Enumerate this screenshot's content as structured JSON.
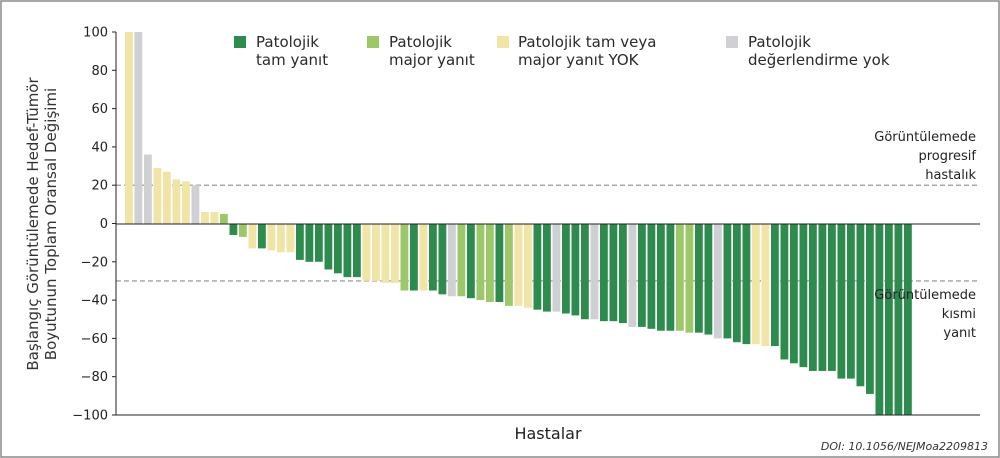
{
  "chart_data": {
    "type": "bar",
    "ylabel_lines": [
      "Başlangıç Görüntülemede Hedef-Tümör",
      "Boyutunun Toplam Oransal Değişimi"
    ],
    "xlabel": "Hastalar",
    "ylim": [
      -100,
      100
    ],
    "yticks": [
      "100",
      "80",
      "60",
      "40",
      "20",
      "0",
      "−20",
      "−40",
      "−60",
      "−80",
      "−100"
    ],
    "ytick_values": [
      100,
      80,
      60,
      40,
      20,
      0,
      -20,
      -40,
      -60,
      -80,
      -100
    ],
    "legend": [
      {
        "key": "pcr",
        "lines": [
          "Patolojik",
          "tam yanıt"
        ],
        "color": "#2e8b4e"
      },
      {
        "key": "mpr",
        "lines": [
          "Patolojik",
          "major yanıt"
        ],
        "color": "#9dc86a"
      },
      {
        "key": "none",
        "lines": [
          "Patolojik tam veya",
          "major yanıt YOK"
        ],
        "color": "#f0e4a6"
      },
      {
        "key": "ne",
        "lines": [
          "Patolojik",
          "değerlendirme yok"
        ],
        "color": "#cfd0d3"
      }
    ],
    "reference_lines": [
      {
        "value": 20,
        "label_lines": [
          "Görüntülemede",
          "progresif",
          "hastalık"
        ]
      },
      {
        "value": -30,
        "label_lines": [
          "Görüntülemede",
          "kısmi",
          "yanıt"
        ]
      }
    ],
    "categories_for_values": [
      "none",
      "ne",
      "ne",
      "none",
      "none",
      "none",
      "none",
      "ne",
      "none",
      "none",
      "mpr",
      "pcr",
      "mpr",
      "none",
      "pcr",
      "none",
      "none",
      "none",
      "pcr",
      "pcr",
      "pcr",
      "pcr",
      "pcr",
      "pcr",
      "pcr",
      "none",
      "none",
      "none",
      "none",
      "mpr",
      "pcr",
      "none",
      "pcr",
      "pcr",
      "ne",
      "mpr",
      "pcr",
      "mpr",
      "mpr",
      "pcr",
      "mpr",
      "none",
      "none",
      "pcr",
      "pcr",
      "ne",
      "pcr",
      "pcr",
      "pcr",
      "ne",
      "pcr",
      "pcr",
      "pcr",
      "ne",
      "pcr",
      "pcr",
      "pcr",
      "pcr",
      "mpr",
      "mpr",
      "pcr",
      "pcr",
      "ne",
      "pcr",
      "pcr",
      "pcr",
      "none",
      "none",
      "pcr",
      "pcr",
      "pcr",
      "pcr",
      "pcr",
      "pcr",
      "pcr",
      "pcr",
      "pcr",
      "pcr",
      "pcr",
      "pcr",
      "pcr",
      "pcr",
      "pcr"
    ],
    "values": [
      100,
      100,
      36,
      29,
      27,
      23,
      22,
      20,
      6,
      6,
      5,
      -6,
      -7,
      -13,
      -13,
      -14,
      -15,
      -15,
      -19,
      -20,
      -20,
      -24,
      -26,
      -28,
      -28,
      -30,
      -30,
      -31,
      -31,
      -35,
      -35,
      -35,
      -35,
      -37,
      -38,
      -38,
      -39,
      -40,
      -41,
      -41,
      -43,
      -43,
      -44,
      -45,
      -46,
      -46,
      -47,
      -48,
      -50,
      -50,
      -51,
      -51,
      -52,
      -54,
      -54,
      -55,
      -56,
      -56,
      -56,
      -57,
      -57,
      -58,
      -60,
      -60,
      -62,
      -63,
      -63,
      -64,
      -64,
      -71,
      -73,
      -75,
      -77,
      -77,
      -77,
      -81,
      -81,
      -85,
      -89,
      -100,
      -100,
      -100,
      -100
    ]
  },
  "doi": "DOI: 10.1056/NEJMoa2209813"
}
